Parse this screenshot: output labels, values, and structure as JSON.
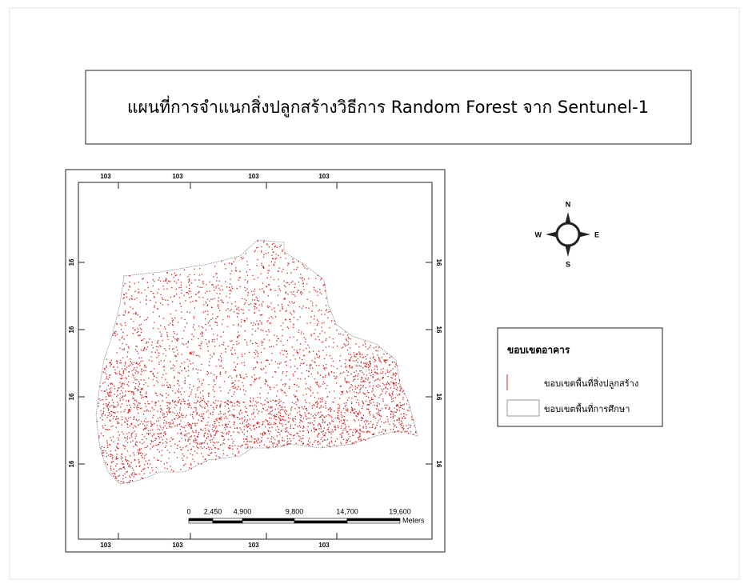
{
  "title": "แผนที่การจำแนกสิ่งปลูกสร้างวิธีการ Random Forest จาก Sentunel-1",
  "graticule": {
    "top": [
      "103",
      "103",
      "103",
      "103"
    ],
    "bottom": [
      "103",
      "103",
      "103",
      "103"
    ],
    "left": [
      "16",
      "16",
      "16",
      "16"
    ],
    "right": [
      "16",
      "16",
      "16",
      "16"
    ]
  },
  "compass": {
    "n": "N",
    "e": "E",
    "s": "S",
    "w": "W"
  },
  "legend": {
    "title": "ขอบเขตอาคาร",
    "items": [
      "ขอบเขตพื้นที่สิ่งปลูกสร้าง",
      "ขอบเขตพื้นที่การศึกษา"
    ]
  },
  "scale_bar": {
    "labels": [
      "0",
      "2,450",
      "4,900",
      "9,800",
      "14,700",
      "19,600"
    ],
    "unit": "Meters"
  }
}
